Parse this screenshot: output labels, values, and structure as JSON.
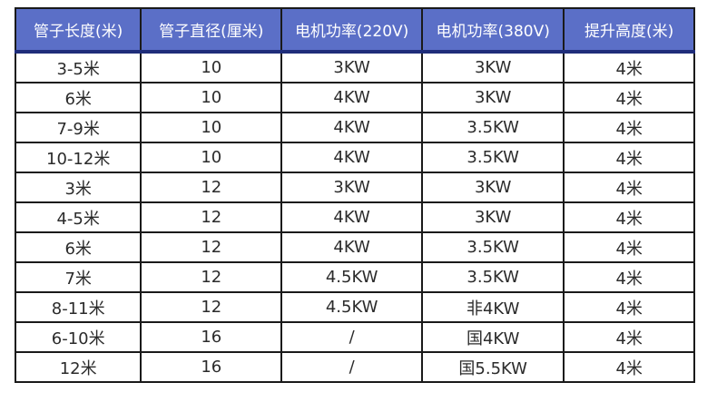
{
  "chart_data": {
    "type": "table",
    "title": "",
    "columns": [
      "管子长度(米)",
      "管子直径(厘米)",
      "电机功率(220V)",
      "电机功率(380V)",
      "提升高度(米)"
    ],
    "rows": [
      [
        "3-5米",
        "10",
        "3KW",
        "3KW",
        "4米"
      ],
      [
        "6米",
        "10",
        "4KW",
        "3KW",
        "4米"
      ],
      [
        "7-9米",
        "10",
        "4KW",
        "3.5KW",
        "4米"
      ],
      [
        "10-12米",
        "10",
        "4KW",
        "3.5KW",
        "4米"
      ],
      [
        "3米",
        "12",
        "3KW",
        "3KW",
        "4米"
      ],
      [
        "4-5米",
        "12",
        "4KW",
        "3KW",
        "4米"
      ],
      [
        "6米",
        "12",
        "4KW",
        "3.5KW",
        "4米"
      ],
      [
        "7米",
        "12",
        "4.5KW",
        "3.5KW",
        "4米"
      ],
      [
        "8-11米",
        "12",
        "4.5KW",
        "非4KW",
        "4米"
      ],
      [
        "6-10米",
        "16",
        "/",
        "国4KW",
        "4米"
      ],
      [
        "12米",
        "16",
        "/",
        "国5.5KW",
        "4米"
      ]
    ]
  },
  "style": {
    "page_bg": "#ffffff",
    "header_bg": "#5b6fc7",
    "header_text": "#ffffff",
    "header_bottom_border": "#1f2d7a",
    "grid_border": "#1a1a1a",
    "body_text": "#2b2b2b"
  }
}
